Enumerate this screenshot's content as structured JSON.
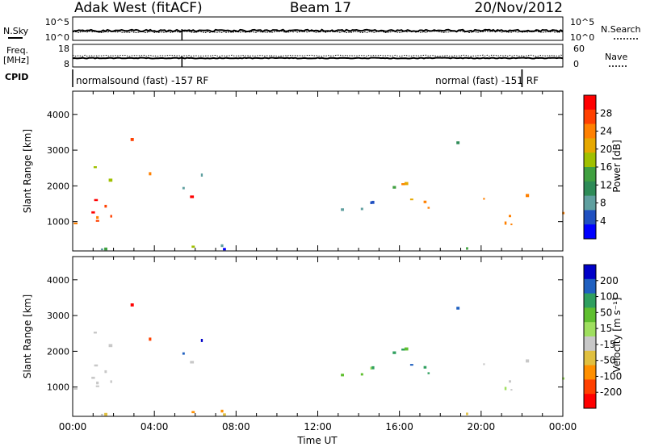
{
  "header": {
    "station": "Adak West (fitACF)",
    "beam": "Beam 17",
    "date": "20/Nov/2012"
  },
  "aux_panels": {
    "noise": {
      "left_label": "N.Sky",
      "right_label": "N.Search",
      "left_ticks": [
        "10^5",
        "10^0"
      ],
      "right_ticks": [
        "10^5",
        "10^0"
      ]
    },
    "freq": {
      "left_label_line1": "Freq.",
      "left_label_line2": "[MHz]",
      "right_label": "Nave",
      "left_ticks": [
        "18",
        "8"
      ],
      "right_ticks": [
        "60",
        "0"
      ]
    },
    "cpid": {
      "label": "CPID",
      "segments": [
        {
          "text": "normalsound (fast) -157 RF",
          "start_hour": 0.0,
          "end_hour": 22.0
        },
        {
          "text": "normal (fast) -151 RF",
          "start_hour": 22.0,
          "end_hour": 24.0
        }
      ]
    }
  },
  "chart_data": [
    {
      "type": "heatmap",
      "name": "power",
      "ylabel": "Slant Range [km]",
      "ylim": [
        180,
        4650
      ],
      "yticks": [
        1000,
        2000,
        3000,
        4000
      ],
      "xlim": [
        0,
        24
      ],
      "colorbar": {
        "label": "Power [dB]",
        "ticks": [
          "28",
          "24",
          "20",
          "16",
          "12",
          "8",
          "4"
        ],
        "colors": [
          "#ff0000",
          "#ff4000",
          "#ff8000",
          "#e6a800",
          "#a0c000",
          "#40a040",
          "#2e8b57",
          "#5f9f9f",
          "#2050c0",
          "#0000ff"
        ]
      }
    },
    {
      "type": "heatmap",
      "name": "velocity",
      "xlabel": "Time UT",
      "ylabel": "Slant Range [km]",
      "ylim": [
        180,
        4650
      ],
      "yticks": [
        1000,
        2000,
        3000,
        4000
      ],
      "xlim": [
        0,
        24
      ],
      "xticks": [
        "00:00",
        "04:00",
        "08:00",
        "12:00",
        "16:00",
        "20:00",
        "00:00"
      ],
      "colorbar": {
        "label": "Velocity [m s⁻¹]",
        "ticks": [
          "200",
          "100",
          "50",
          "15",
          "-15",
          "-50",
          "-100",
          "-200"
        ],
        "colors": [
          "#0000c8",
          "#2060c0",
          "#2f9f5f",
          "#5fbf2f",
          "#9fdf5f",
          "#c8c8c8",
          "#e0c040",
          "#ff9000",
          "#ff4000",
          "#ff0000"
        ]
      }
    }
  ]
}
